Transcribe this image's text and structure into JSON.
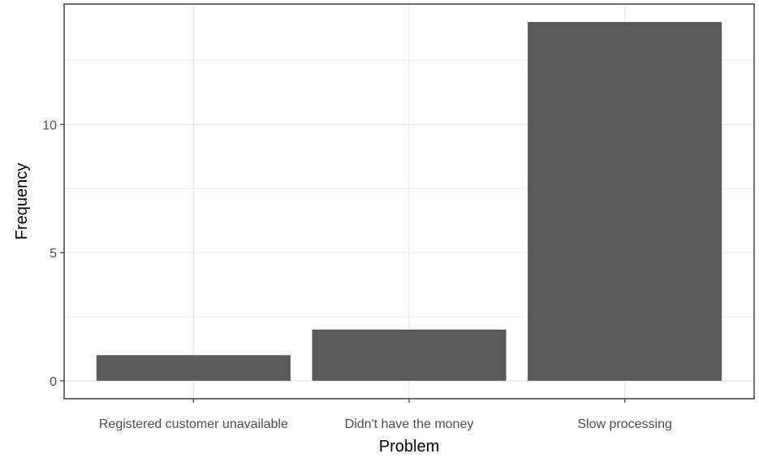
{
  "chart_data": {
    "type": "bar",
    "categories": [
      "Registered customer unavailable",
      "Didn't have the money",
      "Slow processing"
    ],
    "values": [
      1,
      2,
      14
    ],
    "title": "",
    "xlabel": "Problem",
    "ylabel": "Frequency",
    "ylim": [
      -0.7,
      14.7
    ],
    "yticks": [
      0,
      5,
      10
    ],
    "ytick_labels": [
      "0",
      "5",
      "10"
    ],
    "grid": true,
    "legend": "none",
    "bar_color": "#595959",
    "panel_border_color": "#333333",
    "grid_color": "#ebebeb"
  }
}
